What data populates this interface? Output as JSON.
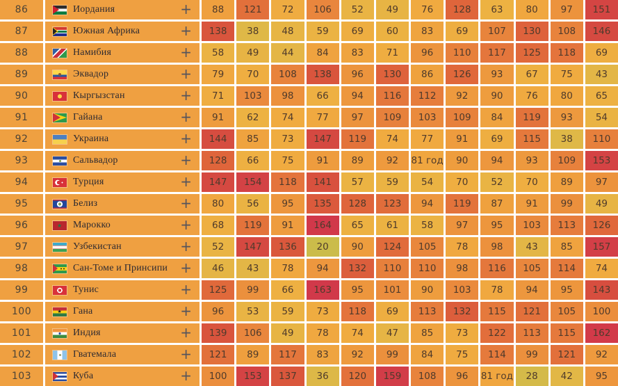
{
  "palette": {
    "row_base": "#EFA041",
    "gap": "#FFFFFF",
    "value_text": "#4E3A2B",
    "rank_text": "#4C4336",
    "country_text": "#2D2A31",
    "plus_color": "#55545C",
    "scale_stops": [
      [
        20,
        "#CBBC4A"
      ],
      [
        38,
        "#DFB847"
      ],
      [
        50,
        "#E8B444"
      ],
      [
        63,
        "#EDB242"
      ],
      [
        76,
        "#F0AA40"
      ],
      [
        88,
        "#EFA03E"
      ],
      [
        100,
        "#EB8E3D"
      ],
      [
        112,
        "#E67D3C"
      ],
      [
        124,
        "#E16B3B"
      ],
      [
        136,
        "#DA583C"
      ],
      [
        147,
        "#D54941"
      ],
      [
        156,
        "#D34046"
      ],
      [
        165,
        "#D1374B"
      ]
    ]
  },
  "table": {
    "expand_label": "+",
    "rows": [
      {
        "rank": "86",
        "country": "Иордания",
        "flag": "jordan",
        "values": [
          "88",
          "121",
          "72",
          "106",
          "52",
          "49",
          "76",
          "128",
          "63",
          "80",
          "97",
          "151"
        ]
      },
      {
        "rank": "87",
        "country": "Южная Африка",
        "flag": "south-africa",
        "values": [
          "138",
          "38",
          "48",
          "59",
          "69",
          "60",
          "83",
          "69",
          "107",
          "130",
          "108",
          "146"
        ]
      },
      {
        "rank": "88",
        "country": "Намибия",
        "flag": "namibia",
        "values": [
          "58",
          "49",
          "44",
          "84",
          "83",
          "71",
          "96",
          "110",
          "117",
          "125",
          "118",
          "69"
        ]
      },
      {
        "rank": "89",
        "country": "Эквадор",
        "flag": "ecuador",
        "values": [
          "79",
          "70",
          "108",
          "138",
          "96",
          "130",
          "86",
          "126",
          "93",
          "67",
          "75",
          "43"
        ]
      },
      {
        "rank": "90",
        "country": "Кыргызстан",
        "flag": "kyrgyzstan",
        "values": [
          "71",
          "103",
          "98",
          "66",
          "94",
          "116",
          "112",
          "92",
          "90",
          "76",
          "80",
          "65"
        ]
      },
      {
        "rank": "91",
        "country": "Гайана",
        "flag": "guyana",
        "values": [
          "91",
          "62",
          "74",
          "77",
          "97",
          "109",
          "103",
          "109",
          "84",
          "119",
          "93",
          "54"
        ]
      },
      {
        "rank": "92",
        "country": "Украина",
        "flag": "ukraine",
        "values": [
          "144",
          "85",
          "73",
          "147",
          "119",
          "74",
          "77",
          "91",
          "69",
          "115",
          "38",
          "110"
        ]
      },
      {
        "rank": "93",
        "country": "Сальвадор",
        "flag": "el-salvador",
        "values": [
          "128",
          "66",
          "75",
          "91",
          "89",
          "92",
          "81 год",
          "90",
          "94",
          "93",
          "109",
          "153"
        ]
      },
      {
        "rank": "94",
        "country": "Турция",
        "flag": "turkey",
        "values": [
          "147",
          "154",
          "118",
          "141",
          "57",
          "59",
          "54",
          "70",
          "52",
          "70",
          "89",
          "97"
        ]
      },
      {
        "rank": "95",
        "country": "Белиз",
        "flag": "belize",
        "values": [
          "80",
          "56",
          "95",
          "135",
          "128",
          "123",
          "94",
          "119",
          "87",
          "91",
          "99",
          "49"
        ]
      },
      {
        "rank": "96",
        "country": "Марокко",
        "flag": "morocco",
        "values": [
          "68",
          "119",
          "91",
          "164",
          "65",
          "61",
          "58",
          "97",
          "95",
          "103",
          "113",
          "126"
        ]
      },
      {
        "rank": "97",
        "country": "Узбекистан",
        "flag": "uzbekistan",
        "values": [
          "52",
          "147",
          "136",
          "20",
          "90",
          "124",
          "105",
          "78",
          "98",
          "43",
          "85",
          "157"
        ]
      },
      {
        "rank": "98",
        "country": "Сан-Томе и Принсипи",
        "flag": "sao-tome",
        "values": [
          "46",
          "43",
          "78",
          "94",
          "132",
          "110",
          "110",
          "98",
          "116",
          "105",
          "114",
          "74"
        ]
      },
      {
        "rank": "99",
        "country": "Тунис",
        "flag": "tunisia",
        "values": [
          "125",
          "99",
          "66",
          "163",
          "95",
          "101",
          "90",
          "103",
          "78",
          "94",
          "95",
          "143"
        ]
      },
      {
        "rank": "100",
        "country": "Гана",
        "flag": "ghana",
        "values": [
          "96",
          "53",
          "59",
          "73",
          "118",
          "69",
          "113",
          "132",
          "115",
          "121",
          "105",
          "100"
        ]
      },
      {
        "rank": "101",
        "country": "Индия",
        "flag": "india",
        "values": [
          "139",
          "106",
          "49",
          "78",
          "74",
          "47",
          "85",
          "73",
          "122",
          "113",
          "115",
          "162"
        ]
      },
      {
        "rank": "102",
        "country": "Гватемала",
        "flag": "guatemala",
        "values": [
          "121",
          "89",
          "117",
          "83",
          "92",
          "99",
          "84",
          "75",
          "114",
          "99",
          "121",
          "92"
        ]
      },
      {
        "rank": "103",
        "country": "Куба",
        "flag": "cuba",
        "values": [
          "100",
          "153",
          "137",
          "36",
          "120",
          "159",
          "108",
          "96",
          "81 год",
          "28",
          "42",
          "95"
        ]
      }
    ]
  }
}
